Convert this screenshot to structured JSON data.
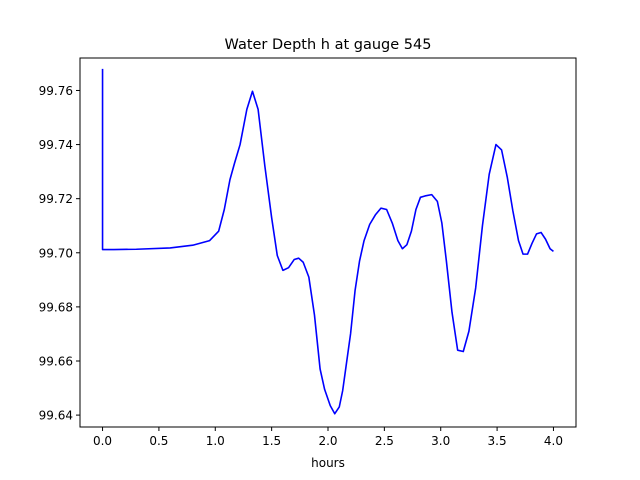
{
  "chart_data": {
    "type": "line",
    "title": "Water Depth h at gauge 545",
    "xlabel": "hours",
    "ylabel": "",
    "xlim": [
      -0.2,
      4.2
    ],
    "ylim": [
      99.6356,
      99.772
    ],
    "xticks": [
      0.0,
      0.5,
      1.0,
      1.5,
      2.0,
      2.5,
      3.0,
      3.5,
      4.0
    ],
    "xtick_labels": [
      "0.0",
      "0.5",
      "1.0",
      "1.5",
      "2.0",
      "2.5",
      "3.0",
      "3.5",
      "4.0"
    ],
    "yticks": [
      99.64,
      99.66,
      99.68,
      99.7,
      99.72,
      99.74,
      99.76
    ],
    "ytick_labels": [
      "99.64",
      "99.66",
      "99.68",
      "99.70",
      "99.72",
      "99.74",
      "99.76"
    ],
    "grid": false,
    "series": [
      {
        "color": "#0000ff",
        "x": [
          0.0,
          0.0,
          0.1,
          0.3,
          0.6,
          0.8,
          0.95,
          1.03,
          1.08,
          1.13,
          1.17,
          1.22,
          1.28,
          1.33,
          1.38,
          1.44,
          1.5,
          1.55,
          1.6,
          1.65,
          1.7,
          1.74,
          1.78,
          1.83,
          1.88,
          1.93,
          1.97,
          2.02,
          2.06,
          2.1,
          2.13,
          2.16,
          2.2,
          2.24,
          2.28,
          2.32,
          2.37,
          2.42,
          2.47,
          2.52,
          2.57,
          2.62,
          2.66,
          2.7,
          2.74,
          2.78,
          2.82,
          2.86,
          2.92,
          2.97,
          3.01,
          3.05,
          3.1,
          3.15,
          3.2,
          3.25,
          3.31,
          3.37,
          3.43,
          3.49,
          3.54,
          3.59,
          3.64,
          3.69,
          3.73,
          3.77,
          3.81,
          3.85,
          3.89,
          3.93,
          3.97,
          4.0
        ],
        "y": [
          99.768,
          99.7012,
          99.7012,
          99.7013,
          99.7018,
          99.7028,
          99.7045,
          99.708,
          99.716,
          99.727,
          99.733,
          99.74,
          99.753,
          99.7597,
          99.753,
          99.732,
          99.713,
          99.699,
          99.6935,
          99.6945,
          99.6975,
          99.698,
          99.6965,
          99.691,
          99.677,
          99.657,
          99.6495,
          99.6435,
          99.6405,
          99.643,
          99.649,
          99.658,
          99.67,
          99.686,
          99.697,
          99.7045,
          99.7105,
          99.714,
          99.7165,
          99.716,
          99.711,
          99.7045,
          99.7015,
          99.703,
          99.708,
          99.716,
          99.7205,
          99.721,
          99.7215,
          99.719,
          99.711,
          99.697,
          99.678,
          99.664,
          99.6635,
          99.671,
          99.687,
          99.71,
          99.729,
          99.74,
          99.738,
          99.728,
          99.7155,
          99.7045,
          99.6995,
          99.6995,
          99.7035,
          99.707,
          99.7075,
          99.705,
          99.7015,
          99.7005
        ]
      }
    ]
  }
}
